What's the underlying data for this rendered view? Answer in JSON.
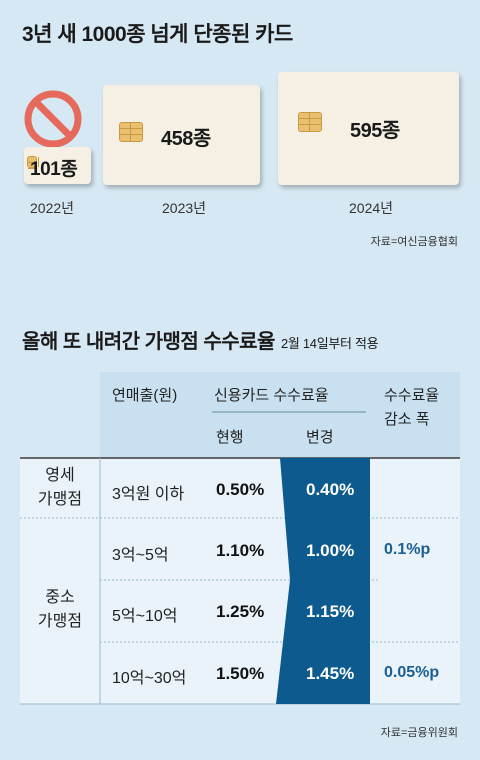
{
  "section1": {
    "title": "3년 새 1000종 넘게 단종된 카드",
    "source": "자료=여신금융협회"
  },
  "section2": {
    "title": "올해 또 내려간 가맹점 수수료율",
    "note": "2월 14일부터 적용",
    "headers": {
      "sales": "연매출(원)",
      "credit_rate": "신용카드 수수료율",
      "current": "현행",
      "changed": "변경",
      "reduction_line1": "수수료율",
      "reduction_line2": "감소 폭"
    },
    "groups": {
      "small": [
        "영세",
        "가맹점"
      ],
      "medium": [
        "중소",
        "가맹점"
      ]
    },
    "rows": [
      {
        "sales": "3억원 이하",
        "current": "0.50%",
        "changed": "0.40%"
      },
      {
        "sales": "3억~5억",
        "current": "1.10%",
        "changed": "1.00%"
      },
      {
        "sales": "5억~10억",
        "current": "1.25%",
        "changed": "1.15%"
      },
      {
        "sales": "10억~30억",
        "current": "1.50%",
        "changed": "1.45%"
      }
    ],
    "reductions": [
      "0.1%p",
      "0.05%p"
    ],
    "source": "자료=금융위원회"
  },
  "chart_data": [
    {
      "type": "bar",
      "title": "3년 새 1000종 넘게 단종된 카드",
      "categories": [
        "2022년",
        "2023년",
        "2024년"
      ],
      "value_labels": [
        "101종",
        "458종",
        "595종"
      ],
      "values": [
        101,
        458,
        595
      ]
    },
    {
      "type": "table",
      "title": "올해 또 내려간 가맹점 수수료율",
      "columns": [
        "연매출(원)",
        "현행",
        "변경",
        "수수료율 감소 폭"
      ],
      "rows": [
        [
          "3억원 이하",
          "0.50%",
          "0.40%",
          ""
        ],
        [
          "3억~5억",
          "1.10%",
          "1.00%",
          "0.1%p"
        ],
        [
          "5억~10억",
          "1.25%",
          "1.15%",
          "0.1%p"
        ],
        [
          "10억~30억",
          "1.50%",
          "1.45%",
          "0.05%p"
        ]
      ]
    }
  ],
  "colors": {
    "background": "#d6e8f3",
    "card": "#f5f0e3",
    "chip": "#e8c070",
    "changed_fill": "#0d5a8e",
    "table_bg": "#e9f3f9",
    "table_header": "#c8e0ef",
    "reduction_text": "#1a5e94",
    "prohibit": "#e66a5c"
  }
}
